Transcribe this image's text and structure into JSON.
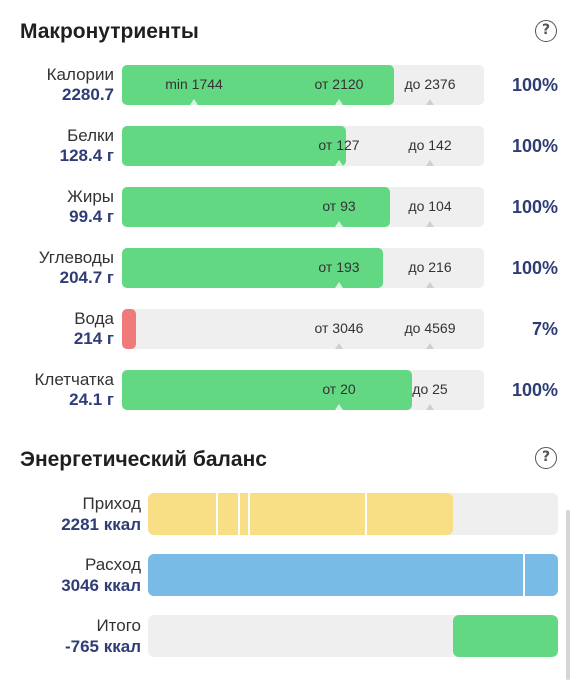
{
  "macros": {
    "title": "Макронутриенты",
    "help": "?",
    "rows": [
      {
        "name": "Калории",
        "value": "2280.7",
        "percent": "100%",
        "fill": 0.75,
        "color": "green",
        "markers": [
          {
            "text": "min 1744",
            "pos": 0.2
          },
          {
            "text": "от 2120",
            "pos": 0.6
          },
          {
            "text": "до 2376",
            "pos": 0.85
          }
        ]
      },
      {
        "name": "Белки",
        "value": "128.4 г",
        "percent": "100%",
        "fill": 0.62,
        "color": "green",
        "markers": [
          {
            "text": "от 127",
            "pos": 0.6
          },
          {
            "text": "до 142",
            "pos": 0.85
          }
        ]
      },
      {
        "name": "Жиры",
        "value": "99.4 г",
        "percent": "100%",
        "fill": 0.74,
        "color": "green",
        "markers": [
          {
            "text": "от 93",
            "pos": 0.6
          },
          {
            "text": "до 104",
            "pos": 0.85
          }
        ]
      },
      {
        "name": "Углеводы",
        "value": "204.7 г",
        "percent": "100%",
        "fill": 0.72,
        "color": "green",
        "markers": [
          {
            "text": "от 193",
            "pos": 0.6
          },
          {
            "text": "до 216",
            "pos": 0.85
          }
        ]
      },
      {
        "name": "Вода",
        "value": "214 г",
        "percent": "7%",
        "fill": 0.04,
        "color": "red",
        "markers": [
          {
            "text": "от 3046",
            "pos": 0.6
          },
          {
            "text": "до 4569",
            "pos": 0.85
          }
        ]
      },
      {
        "name": "Клетчатка",
        "value": "24.1 г",
        "percent": "100%",
        "fill": 0.8,
        "color": "green",
        "markers": [
          {
            "text": "от 20",
            "pos": 0.6
          },
          {
            "text": "до 25",
            "pos": 0.85
          }
        ]
      }
    ]
  },
  "energy": {
    "title": "Энергетический баланс",
    "help": "?",
    "rows": [
      {
        "name": "Приход",
        "value": "2281 ккал",
        "start": 0,
        "fill": 0.745,
        "color": "#f8df86",
        "dividers": [
          0.165,
          0.22,
          0.245,
          0.53
        ]
      },
      {
        "name": "Расход",
        "value": "3046 ккал",
        "start": 0,
        "fill": 1.0,
        "color": "#77bbe6",
        "dividers": [
          0.915
        ]
      },
      {
        "name": "Итого",
        "value": "-765 ккал",
        "start": 0.745,
        "fill": 0.255,
        "color": "#63d883",
        "dividers": []
      }
    ]
  }
}
